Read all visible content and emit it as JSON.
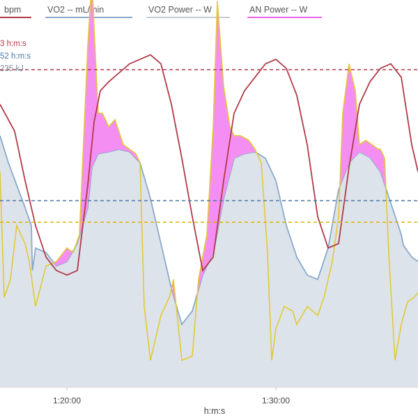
{
  "chart_data": {
    "type": "area",
    "title": "",
    "xlabel": "h:m:s",
    "ylabel": "",
    "x_ticks": [
      "1:20:00",
      "1:30:00"
    ],
    "x_tick_minutes": [
      80,
      90
    ],
    "xlim_minutes": [
      76.8,
      96.8
    ],
    "legend": [
      {
        "label": "bpm",
        "color": "#b03a48"
      },
      {
        "label": "VO2  -- mL/min",
        "color": "#8aa9c9"
      },
      {
        "label": "VO2 Power  -- W",
        "color": "#c6ccd3"
      },
      {
        "label": "AN Power  -- W",
        "color": "#ee66ee"
      }
    ],
    "reference_lines": [
      {
        "name": "bpm-threshold",
        "label": "3 h:m:s",
        "color": "#b03a48"
      },
      {
        "name": "vo2-threshold",
        "label": "52 h:m:s",
        "color": "#4f77a8"
      },
      {
        "name": "power-threshold",
        "label": "235 kJ",
        "color": "#d8b400"
      }
    ],
    "series": [
      {
        "name": "bpm",
        "color": "#b03a48",
        "scale": [
          95,
          175
        ],
        "x": [
          76.8,
          77.5,
          78,
          78.5,
          79,
          79.5,
          80,
          80.5,
          81,
          81.3,
          81.6,
          82,
          82.5,
          83,
          83.5,
          84,
          84.5,
          85,
          85.5,
          86,
          86.5,
          87,
          87.5,
          88,
          88.5,
          89,
          89.5,
          90,
          90.5,
          91,
          91.5,
          92,
          92.5,
          93,
          93.5,
          94,
          94.5,
          95,
          95.5,
          96,
          96.5,
          96.8
        ],
        "values": [
          158,
          152,
          141,
          131,
          124,
          121,
          120,
          121,
          140,
          154,
          161,
          163,
          165,
          167,
          168,
          169,
          167,
          158,
          146,
          133,
          121,
          124,
          141,
          156,
          161,
          164,
          167,
          168,
          166,
          160,
          149,
          133,
          126,
          127,
          144,
          158,
          163,
          166,
          167,
          164,
          149,
          143
        ]
      },
      {
        "name": "VO2",
        "color": "#8aa9c9",
        "scale": [
          0,
          4000
        ],
        "x": [
          76.8,
          77.2,
          77.6,
          78,
          78.3,
          78.35,
          78.5,
          79,
          79.5,
          80,
          80.5,
          81,
          81.2,
          81.5,
          82,
          82.5,
          83,
          83.5,
          84,
          84.5,
          85,
          85.5,
          86,
          86.5,
          87,
          87.1,
          87.5,
          88,
          88.5,
          89,
          89.5,
          90,
          90.5,
          91,
          91.5,
          92,
          92.5,
          93,
          93.5,
          94,
          94.5,
          95,
          95.5,
          96,
          96.1,
          96.5,
          96.8
        ],
        "values": [
          2800,
          2500,
          2250,
          2000,
          1800,
          1300,
          1550,
          1500,
          1350,
          1400,
          1600,
          2000,
          2450,
          2600,
          2620,
          2650,
          2620,
          2500,
          2100,
          1600,
          1100,
          700,
          850,
          1250,
          1500,
          1600,
          2100,
          2550,
          2600,
          2620,
          2550,
          2300,
          1800,
          1450,
          1250,
          1200,
          1550,
          2200,
          2500,
          2620,
          2560,
          2400,
          2050,
          1700,
          1580,
          1450,
          1400
        ]
      },
      {
        "name": "VO2 Power",
        "color": "#c6ccd3",
        "scale": [
          0,
          4000
        ],
        "x": [
          76.8,
          77.2,
          77.6,
          78,
          78.3,
          78.35,
          78.5,
          79,
          79.5,
          80,
          80.5,
          81,
          81.2,
          81.5,
          82,
          82.5,
          83,
          83.5,
          84,
          84.5,
          85,
          85.5,
          86,
          86.5,
          87,
          87.1,
          87.5,
          88,
          88.5,
          89,
          89.5,
          90,
          90.5,
          91,
          91.5,
          92,
          92.5,
          93,
          93.5,
          94,
          94.5,
          95,
          95.5,
          96,
          96.1,
          96.5,
          96.8
        ],
        "values": [
          2800,
          2500,
          2250,
          2000,
          1800,
          1300,
          1550,
          1500,
          1350,
          1400,
          1600,
          2000,
          2450,
          2600,
          2620,
          2650,
          2620,
          2500,
          2100,
          1600,
          1100,
          700,
          850,
          1250,
          1500,
          1600,
          2100,
          2550,
          2600,
          2620,
          2550,
          2300,
          1800,
          1450,
          1250,
          1200,
          1550,
          2200,
          2500,
          2620,
          2560,
          2400,
          2050,
          1700,
          1580,
          1450,
          1400
        ]
      },
      {
        "name": "AN Power",
        "color": "#ee66ee",
        "scale": [
          0,
          4000
        ],
        "x": [
          76.8,
          77,
          77.3,
          77.6,
          78,
          78.2,
          78.5,
          79,
          79.5,
          80,
          80.3,
          80.6,
          81,
          81.2,
          81.3,
          81.5,
          81.7,
          82,
          82.3,
          82.7,
          83,
          83.3,
          83.5,
          83.7,
          84,
          84.2,
          84.5,
          84.9,
          85.1,
          85.5,
          86,
          86.3,
          86.7,
          87,
          87.2,
          87.5,
          87.8,
          88,
          88.3,
          88.7,
          89,
          89.3,
          89.6,
          89.8,
          90,
          90.4,
          90.8,
          91,
          91.5,
          92,
          92.3,
          92.7,
          93,
          93.2,
          93.5,
          93.8,
          94,
          94.3,
          94.6,
          94.9,
          95,
          95.2,
          95.4,
          95.7,
          96,
          96.3,
          96.6,
          96.8
        ],
        "values": [
          2400,
          1000,
          1200,
          1800,
          1600,
          1400,
          900,
          1350,
          1400,
          1550,
          1500,
          1700,
          3800,
          4550,
          4000,
          3050,
          3050,
          2900,
          2980,
          2700,
          2650,
          2600,
          2500,
          900,
          300,
          500,
          800,
          1000,
          1200,
          300,
          350,
          1200,
          1700,
          2900,
          4300,
          3350,
          2900,
          2800,
          2800,
          2750,
          2650,
          2500,
          1500,
          300,
          650,
          900,
          850,
          700,
          900,
          800,
          1000,
          1400,
          1900,
          3050,
          3600,
          3300,
          2700,
          2750,
          2700,
          2650,
          2650,
          2550,
          1500,
          300,
          700,
          950,
          1000,
          1050
        ]
      }
    ]
  }
}
